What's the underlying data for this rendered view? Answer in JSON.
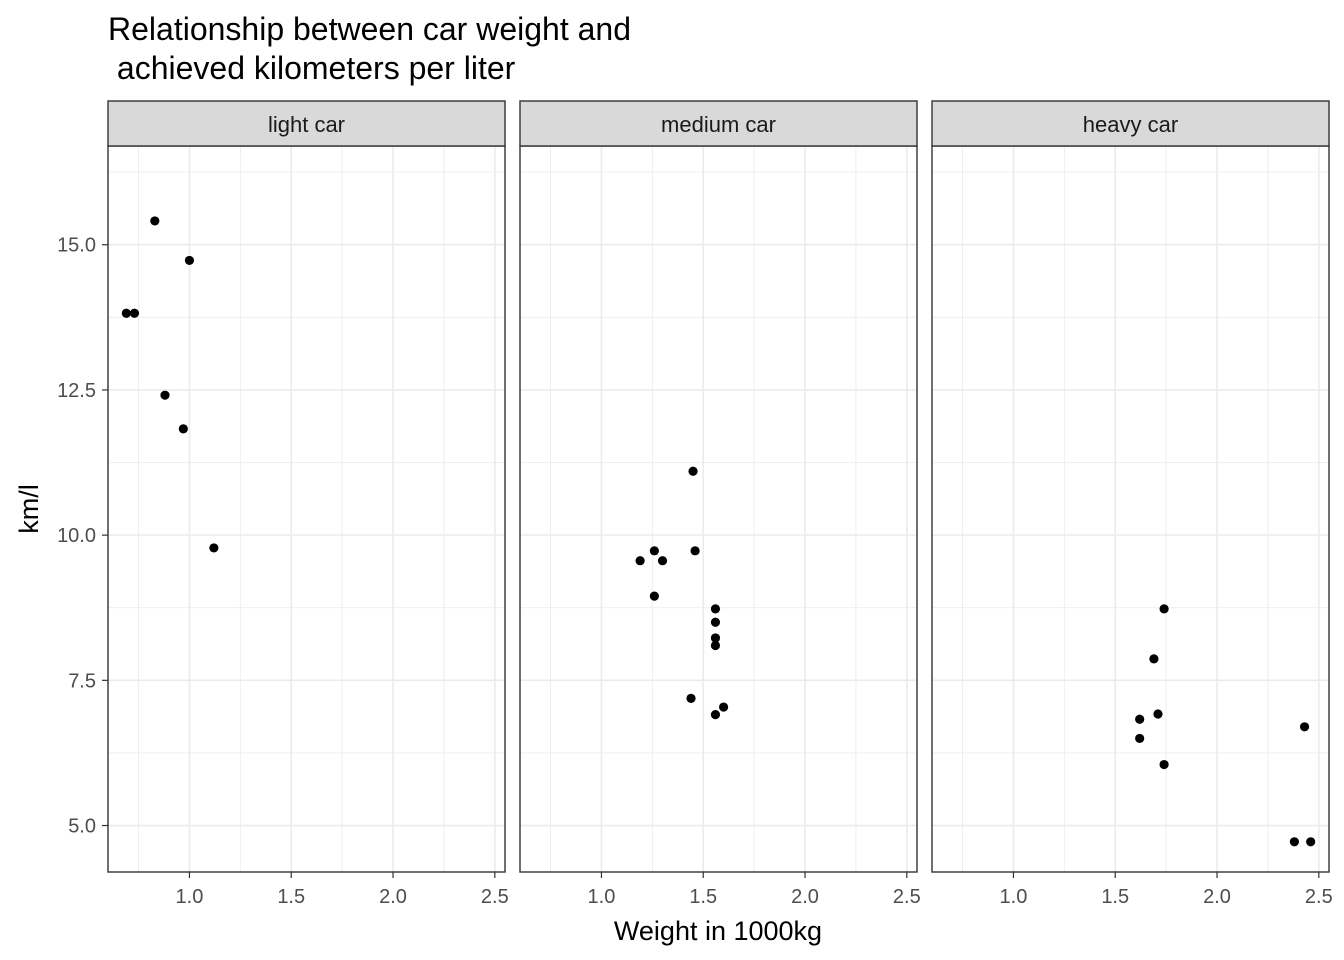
{
  "chart_data": {
    "type": "scatter",
    "title_lines": [
      "Relationship between car weight and",
      " achieved kilometers per liter"
    ],
    "xlabel": "Weight in 1000kg",
    "ylabel": "km/l",
    "xlim": [
      0.6,
      2.55
    ],
    "ylim": [
      4.2,
      16.7
    ],
    "x_ticks": [
      1.0,
      1.5,
      2.0,
      2.5
    ],
    "x_tick_labels": [
      "1.0",
      "1.5",
      "2.0",
      "2.5"
    ],
    "y_ticks": [
      5.0,
      7.5,
      10.0,
      12.5,
      15.0
    ],
    "y_tick_labels": [
      "5.0",
      "7.5",
      "10.0",
      "12.5",
      "15.0"
    ],
    "grid": true,
    "point_color": "#000000",
    "panels": [
      {
        "label": "light car",
        "points": [
          {
            "x": 0.83,
            "y": 15.41
          },
          {
            "x": 1.0,
            "y": 14.73
          },
          {
            "x": 0.69,
            "y": 13.82
          },
          {
            "x": 0.73,
            "y": 13.82
          },
          {
            "x": 0.88,
            "y": 12.41
          },
          {
            "x": 0.97,
            "y": 11.83
          },
          {
            "x": 1.12,
            "y": 9.78
          }
        ]
      },
      {
        "label": "medium car",
        "points": [
          {
            "x": 1.45,
            "y": 11.1
          },
          {
            "x": 1.26,
            "y": 9.73
          },
          {
            "x": 1.46,
            "y": 9.73
          },
          {
            "x": 1.19,
            "y": 9.56
          },
          {
            "x": 1.3,
            "y": 9.56
          },
          {
            "x": 1.26,
            "y": 8.95
          },
          {
            "x": 1.56,
            "y": 8.73
          },
          {
            "x": 1.56,
            "y": 8.5
          },
          {
            "x": 1.56,
            "y": 8.23
          },
          {
            "x": 1.56,
            "y": 8.1
          },
          {
            "x": 1.44,
            "y": 7.19
          },
          {
            "x": 1.6,
            "y": 7.04
          },
          {
            "x": 1.56,
            "y": 6.91
          }
        ]
      },
      {
        "label": "heavy car",
        "points": [
          {
            "x": 1.74,
            "y": 8.73
          },
          {
            "x": 1.69,
            "y": 7.87
          },
          {
            "x": 1.71,
            "y": 6.92
          },
          {
            "x": 1.62,
            "y": 6.83
          },
          {
            "x": 1.62,
            "y": 6.5
          },
          {
            "x": 1.74,
            "y": 6.05
          },
          {
            "x": 2.43,
            "y": 6.7
          },
          {
            "x": 2.38,
            "y": 4.72
          },
          {
            "x": 2.46,
            "y": 4.72
          }
        ]
      }
    ]
  }
}
